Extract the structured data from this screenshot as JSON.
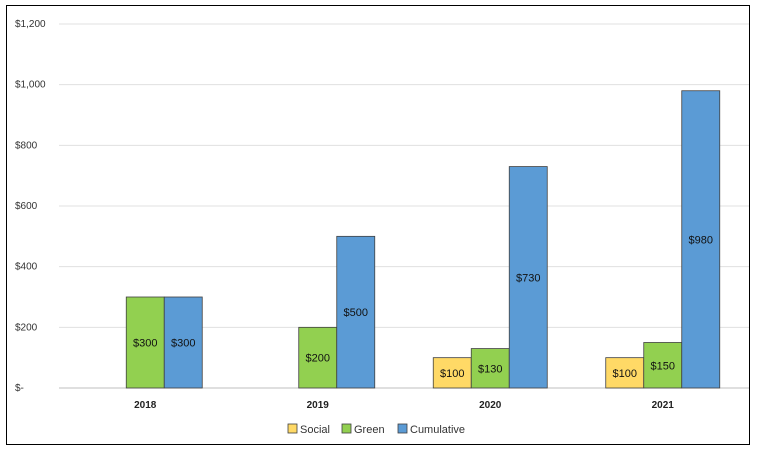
{
  "chart_data": {
    "type": "bar",
    "categories": [
      "2018",
      "2019",
      "2020",
      "2021"
    ],
    "series": [
      {
        "name": "Social",
        "color": "#FFD966",
        "values": [
          null,
          null,
          100,
          100
        ]
      },
      {
        "name": "Green",
        "color": "#92D050",
        "values": [
          300,
          200,
          130,
          150
        ]
      },
      {
        "name": "Cumulative",
        "color": "#5B9BD5",
        "values": [
          300,
          500,
          730,
          980
        ]
      }
    ],
    "data_labels": [
      [
        null,
        null,
        "$100",
        "$100"
      ],
      [
        "$300",
        "$200",
        "$130",
        "$150"
      ],
      [
        "$300",
        "$500",
        "$730",
        "$980"
      ]
    ],
    "y_ticks": [
      {
        "value": 0,
        "label": "$-"
      },
      {
        "value": 200,
        "label": "$200"
      },
      {
        "value": 400,
        "label": "$400"
      },
      {
        "value": 600,
        "label": "$600"
      },
      {
        "value": 800,
        "label": "$800"
      },
      {
        "value": 1000,
        "label": "$1,000"
      },
      {
        "value": 1200,
        "label": "$1,200"
      }
    ],
    "ylim": [
      0,
      1200
    ],
    "grid": true,
    "legend": "bottom",
    "title": "",
    "xlabel": "",
    "ylabel": ""
  }
}
